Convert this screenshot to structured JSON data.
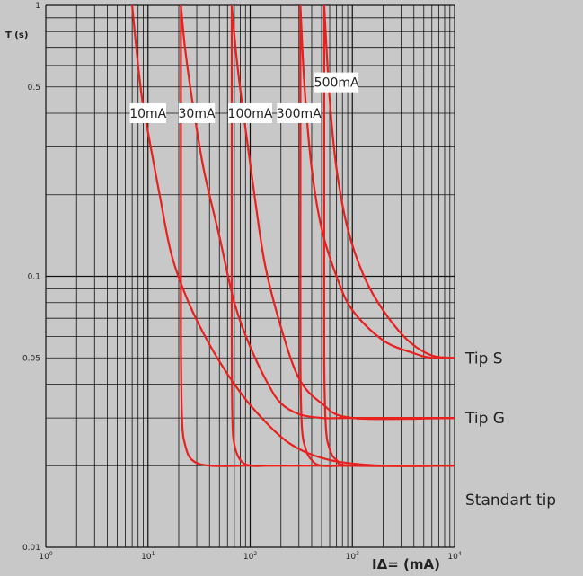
{
  "chart_data": {
    "type": "line",
    "x_scale": "log",
    "y_scale": "log",
    "xlim": [
      1,
      10000
    ],
    "ylim": [
      0.01,
      1
    ],
    "ylabel": "T (s)",
    "xlabel": "IΔ= (mA)",
    "grid": true,
    "x_ticks": [
      {
        "value": 1,
        "mantissa": "10",
        "exp": "0"
      },
      {
        "value": 10,
        "mantissa": "10",
        "exp": "1"
      },
      {
        "value": 100,
        "mantissa": "10",
        "exp": "2"
      },
      {
        "value": 1000,
        "mantissa": "10",
        "exp": "3"
      },
      {
        "value": 10000,
        "mantissa": "10",
        "exp": "4"
      }
    ],
    "y_ticks": [
      {
        "value": 1,
        "label": "1"
      },
      {
        "value": 0.5,
        "label": "0.5"
      },
      {
        "value": 0.1,
        "label": "0.1"
      },
      {
        "value": 0.05,
        "label": "0.05"
      },
      {
        "value": 0.01,
        "label": "0.01"
      }
    ],
    "series_color": "#e8201e",
    "series": [
      {
        "name": "10mA",
        "x": [
          7,
          8,
          9,
          10,
          13,
          17,
          25,
          40,
          70,
          120,
          250,
          600,
          2000,
          10000
        ],
        "y": [
          1,
          0.6,
          0.42,
          0.34,
          0.2,
          0.12,
          0.08,
          0.056,
          0.04,
          0.031,
          0.024,
          0.021,
          0.02,
          0.02
        ]
      },
      {
        "name": "30mA",
        "x": [
          21,
          21,
          21,
          21.5,
          23,
          27,
          40,
          100,
          500,
          10000
        ],
        "y": [
          1,
          0.2,
          0.06,
          0.03,
          0.024,
          0.021,
          0.02,
          0.02,
          0.02,
          0.02
        ]
      },
      {
        "name": "30mA",
        "x": [
          21,
          23,
          27,
          35,
          50,
          70,
          100,
          150,
          200,
          300,
          500,
          1000,
          10000
        ],
        "y": [
          1,
          0.7,
          0.45,
          0.25,
          0.14,
          0.08,
          0.055,
          0.04,
          0.034,
          0.031,
          0.03,
          0.03,
          0.03
        ]
      },
      {
        "name": "100mA",
        "x": [
          66,
          66,
          66,
          67,
          70,
          80,
          100,
          150,
          300,
          1000,
          10000
        ],
        "y": [
          1,
          0.2,
          0.06,
          0.03,
          0.024,
          0.021,
          0.02,
          0.02,
          0.02,
          0.02,
          0.02
        ]
      },
      {
        "name": "100mA",
        "x": [
          66,
          75,
          90,
          110,
          140,
          200,
          300,
          500,
          1000,
          10000
        ],
        "y": [
          1,
          0.6,
          0.35,
          0.2,
          0.11,
          0.065,
          0.042,
          0.034,
          0.03,
          0.03
        ]
      },
      {
        "name": "300mA",
        "x": [
          310,
          310,
          310,
          320,
          350,
          400,
          500,
          1000,
          10000
        ],
        "y": [
          1,
          0.2,
          0.05,
          0.028,
          0.023,
          0.021,
          0.02,
          0.02,
          0.02
        ]
      },
      {
        "name": "300mA",
        "x": [
          310,
          340,
          400,
          500,
          700,
          1000,
          2000,
          4000,
          6000,
          10000
        ],
        "y": [
          1,
          0.5,
          0.25,
          0.15,
          0.1,
          0.075,
          0.058,
          0.052,
          0.05,
          0.05
        ]
      },
      {
        "name": "500mA",
        "x": [
          530,
          530,
          530,
          550,
          600,
          700,
          1000,
          10000
        ],
        "y": [
          1,
          0.2,
          0.05,
          0.028,
          0.023,
          0.021,
          0.02,
          0.02
        ]
      },
      {
        "name": "500mA",
        "x": [
          530,
          600,
          700,
          900,
          1300,
          2000,
          3500,
          6000,
          10000
        ],
        "y": [
          1,
          0.45,
          0.25,
          0.15,
          0.1,
          0.075,
          0.058,
          0.051,
          0.05
        ]
      }
    ],
    "annotations": [
      {
        "text": "10mA",
        "x": 10,
        "y": 0.4
      },
      {
        "text": "30mA",
        "x": 30,
        "y": 0.4
      },
      {
        "text": "100mA",
        "x": 100,
        "y": 0.4
      },
      {
        "text": "300mA",
        "x": 300,
        "y": 0.4
      },
      {
        "text": "500mA",
        "x": 700,
        "y": 0.52
      }
    ],
    "type_labels": [
      {
        "text": "Tip S",
        "y": 0.05
      },
      {
        "text": "Tip G",
        "y": 0.03
      },
      {
        "text": "Standart tip",
        "y": 0.015
      }
    ]
  }
}
